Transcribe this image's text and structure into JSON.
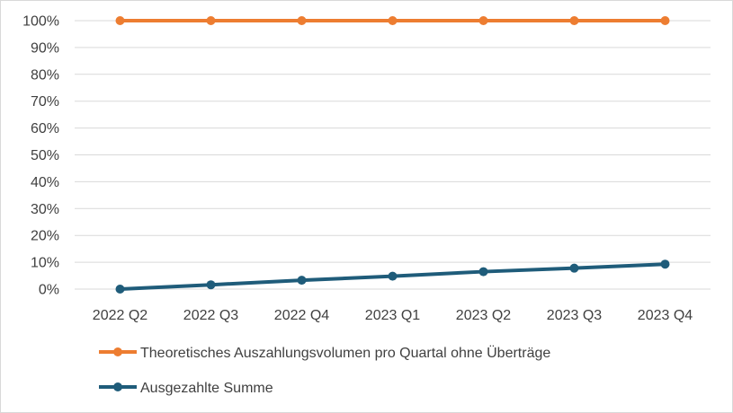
{
  "chart_data": {
    "type": "line",
    "categories": [
      "2022 Q2",
      "2022 Q3",
      "2022 Q4",
      "2023 Q1",
      "2023 Q2",
      "2023 Q3",
      "2023 Q4"
    ],
    "ylim": [
      0,
      100
    ],
    "yticks": [
      "0%",
      "10%",
      "20%",
      "30%",
      "40%",
      "50%",
      "60%",
      "70%",
      "80%",
      "90%",
      "100%"
    ],
    "grid": true,
    "legend_position": "bottom-left",
    "series": [
      {
        "name": "Theoretisches Auszahlungsvolumen pro Quartal ohne Überträge",
        "values": [
          100,
          100,
          100,
          100,
          100,
          100,
          100
        ],
        "color": "#ED7D31"
      },
      {
        "name": "Ausgezahlte Summe",
        "values": [
          0,
          1.6,
          3.3,
          4.8,
          6.5,
          7.8,
          9.3
        ],
        "color": "#1F5C7A"
      }
    ]
  }
}
